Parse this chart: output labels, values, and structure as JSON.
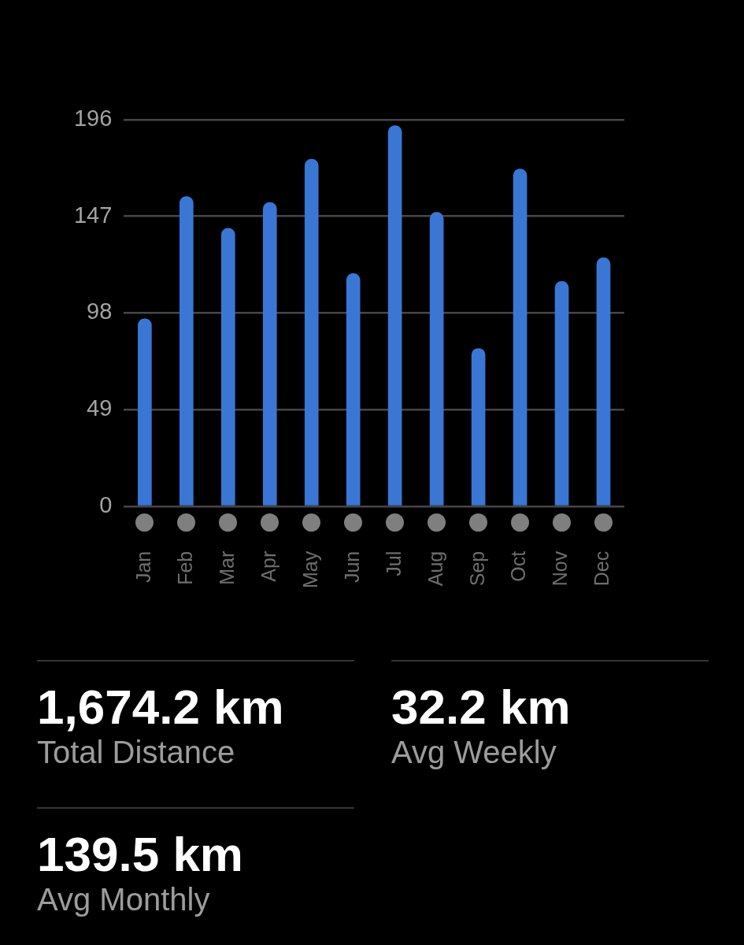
{
  "chart_data": [
    {
      "type": "bar",
      "categories": [
        "Jan",
        "Feb",
        "Mar",
        "Apr",
        "May",
        "Jun",
        "Jul",
        "Aug",
        "Sep",
        "Oct",
        "Nov",
        "Dec"
      ],
      "values": [
        95,
        157,
        141,
        154,
        176,
        118,
        193,
        149,
        80,
        171,
        114,
        126
      ],
      "color": "#3a77d5",
      "ylim": [
        0,
        196
      ],
      "yticks": [
        0,
        49,
        98,
        147,
        196
      ],
      "grid": "y"
    },
    {
      "type": "other",
      "annotations": [
        "1,674.2 km",
        "Total Distance",
        "32.2 km",
        "Avg Weekly",
        "139.5 km",
        "Avg Monthly"
      ]
    }
  ]
}
